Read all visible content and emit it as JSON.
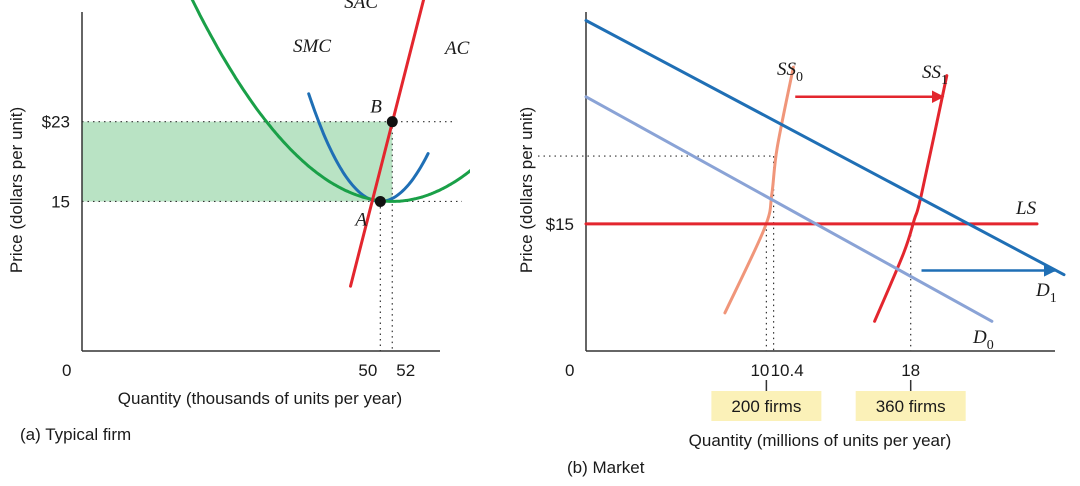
{
  "chart_data": [
    {
      "type": "line",
      "panel_title": "(a) Typical firm",
      "xlabel": "Quantity (thousands of units per year)",
      "ylabel": "Price (dollars per unit)",
      "origin_label": "0",
      "xlim": [
        0,
        60
      ],
      "ylim": [
        0,
        34
      ],
      "x_ticks": [
        {
          "value": 50,
          "label": "50"
        },
        {
          "value": 52,
          "label": "52"
        }
      ],
      "y_ticks": [
        {
          "value": 23,
          "label": "$23"
        },
        {
          "value": 15,
          "label": "15"
        }
      ],
      "curves": [
        {
          "name": "SAC",
          "color": "#1f6fb5",
          "vertex": [
            50,
            15
          ],
          "k": 0.075,
          "x_range": [
            38,
            58
          ]
        },
        {
          "name": "AC",
          "color": "#1aa048",
          "vertex": [
            52,
            15
          ],
          "k": 0.018,
          "x_range": [
            8,
            94
          ]
        },
        {
          "name": "SMC",
          "color": "#e3262e",
          "x": [
            45,
            58
          ],
          "y": [
            6.5,
            37
          ]
        }
      ],
      "points": [
        {
          "label": "A",
          "x": 50,
          "y": 15
        },
        {
          "label": "B",
          "x": 52,
          "y": 23
        }
      ],
      "shaded_region": {
        "x": [
          0,
          52
        ],
        "y": [
          15,
          23
        ],
        "color": "#b9e3c4"
      }
    },
    {
      "type": "line",
      "panel_title": "(b) Market",
      "xlabel": "Quantity (millions of units per year)",
      "ylabel": "Price (dollars per unit)",
      "origin_label": "0",
      "xlim": [
        0,
        26
      ],
      "ylim": [
        0,
        40
      ],
      "x_ticks": [
        {
          "value": 10,
          "label": "10"
        },
        {
          "value": 10.4,
          "label": "10.4"
        },
        {
          "value": 18,
          "label": "18"
        }
      ],
      "y_ticks": [
        {
          "value": 15,
          "label": "$15"
        }
      ],
      "curves": [
        {
          "name": "SS",
          "subscript": "0",
          "color": "#f0967a",
          "x": [
            7.7,
            9.9,
            10.3,
            10.6,
            11.5
          ],
          "y": [
            4.5,
            14.5,
            18.5,
            24,
            33.5
          ]
        },
        {
          "name": "SS",
          "subscript": "1",
          "color": "#e3262e",
          "x": [
            16,
            17.6,
            18.2,
            18.6,
            20
          ],
          "y": [
            3.5,
            11.5,
            15.5,
            18.5,
            32.5
          ]
        },
        {
          "name": "LS",
          "color": "#e3262e",
          "x": [
            0,
            25
          ],
          "y": [
            15,
            15
          ]
        },
        {
          "name": "D",
          "subscript": "0",
          "color": "#8aa3d6",
          "x": [
            0,
            22.5
          ],
          "y": [
            30,
            3.5
          ]
        },
        {
          "name": "D",
          "subscript": "1",
          "color": "#1f6fb5",
          "x": [
            0,
            26.5
          ],
          "y": [
            39,
            9
          ]
        }
      ],
      "dotted_price_level": 23,
      "shift_arrows": [
        {
          "color": "#e3262e",
          "from": [
            11.6,
            30
          ],
          "to": [
            19.8,
            30
          ]
        },
        {
          "color": "#1f6fb5",
          "from": [
            18.6,
            9.5
          ],
          "to": [
            26,
            9.5
          ]
        }
      ],
      "firm_badges": [
        {
          "at_x": 10,
          "label": "200 firms"
        },
        {
          "at_x": 18,
          "label": "360 firms"
        }
      ]
    }
  ]
}
